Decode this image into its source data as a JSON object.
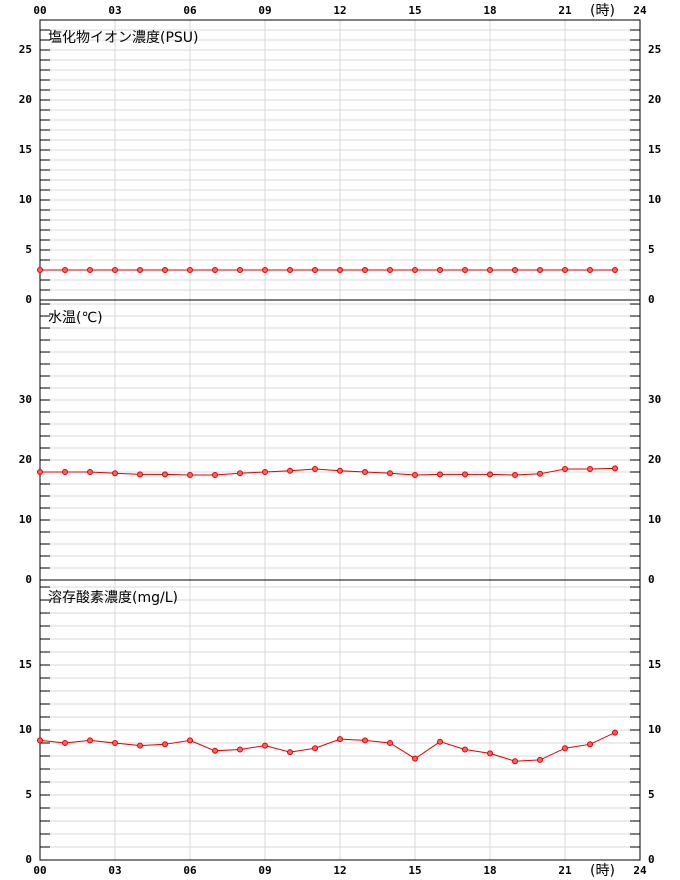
{
  "chart_data": [
    {
      "type": "line",
      "title": "塩化物イオン濃度(PSU)",
      "x_unit": "(時)",
      "x": [
        0,
        1,
        2,
        3,
        4,
        5,
        6,
        7,
        8,
        9,
        10,
        11,
        12,
        13,
        14,
        15,
        16,
        17,
        18,
        19,
        20,
        21,
        22,
        23
      ],
      "xlim": [
        0,
        24
      ],
      "xticks": [
        {
          "value": 0,
          "label": "00"
        },
        {
          "value": 3,
          "label": "03"
        },
        {
          "value": 6,
          "label": "06"
        },
        {
          "value": 9,
          "label": "09"
        },
        12,
        15,
        18,
        21,
        24
      ],
      "ylim": [
        0,
        28
      ],
      "yticks": [
        0,
        5,
        10,
        15,
        20,
        25
      ],
      "grid": true,
      "minor_grid": 1,
      "series": [
        {
          "color": "#e00000",
          "values": [
            3.0,
            3.0,
            3.0,
            3.0,
            3.0,
            3.0,
            3.0,
            3.0,
            3.0,
            3.0,
            3.0,
            3.0,
            3.0,
            3.0,
            3.0,
            3.0,
            3.0,
            3.0,
            3.0,
            3.0,
            3.0,
            3.0,
            3.0,
            3.0
          ]
        }
      ]
    },
    {
      "type": "line",
      "title": "水温(℃)",
      "x": [
        0,
        1,
        2,
        3,
        4,
        5,
        6,
        7,
        8,
        9,
        10,
        11,
        12,
        13,
        14,
        15,
        16,
        17,
        18,
        19,
        20,
        21,
        22,
        23
      ],
      "xlim": [
        0,
        24
      ],
      "xticks": [
        {
          "value": 0,
          "label": "00"
        },
        {
          "value": 3,
          "label": "03"
        },
        {
          "value": 6,
          "label": "06"
        },
        {
          "value": 9,
          "label": "09"
        },
        12,
        15,
        18,
        21,
        24
      ],
      "ylim": [
        0,
        46.67
      ],
      "yticks": [
        0,
        10,
        20,
        30
      ],
      "grid": true,
      "minor_grid": 2,
      "series": [
        {
          "color": "#e00000",
          "values": [
            18.0,
            18.0,
            18.0,
            17.8,
            17.6,
            17.6,
            17.5,
            17.5,
            17.8,
            18.0,
            18.2,
            18.5,
            18.2,
            18.0,
            17.8,
            17.5,
            17.6,
            17.6,
            17.6,
            17.5,
            17.7,
            18.5,
            18.5,
            18.6
          ]
        }
      ]
    },
    {
      "type": "line",
      "title": "溶存酸素濃度(mg/L)",
      "x_unit": "(時)",
      "x": [
        0,
        1,
        2,
        3,
        4,
        5,
        6,
        7,
        8,
        9,
        10,
        11,
        12,
        13,
        14,
        15,
        16,
        17,
        18,
        19,
        20,
        21,
        22,
        23
      ],
      "xlim": [
        0,
        24
      ],
      "xticks": [
        {
          "value": 0,
          "label": "00"
        },
        {
          "value": 3,
          "label": "03"
        },
        {
          "value": 6,
          "label": "06"
        },
        {
          "value": 9,
          "label": "09"
        },
        12,
        15,
        18,
        21,
        24
      ],
      "ylim": [
        0,
        21.54
      ],
      "yticks": [
        0,
        5,
        10,
        15
      ],
      "grid": true,
      "minor_grid": 1,
      "series": [
        {
          "color": "#e00000",
          "values": [
            9.2,
            9.0,
            9.2,
            9.0,
            8.8,
            8.9,
            9.2,
            8.4,
            8.5,
            8.8,
            8.3,
            8.6,
            9.3,
            9.2,
            9.0,
            7.8,
            9.1,
            8.5,
            8.2,
            7.6,
            7.7,
            8.6,
            8.9,
            9.8
          ]
        }
      ]
    }
  ]
}
